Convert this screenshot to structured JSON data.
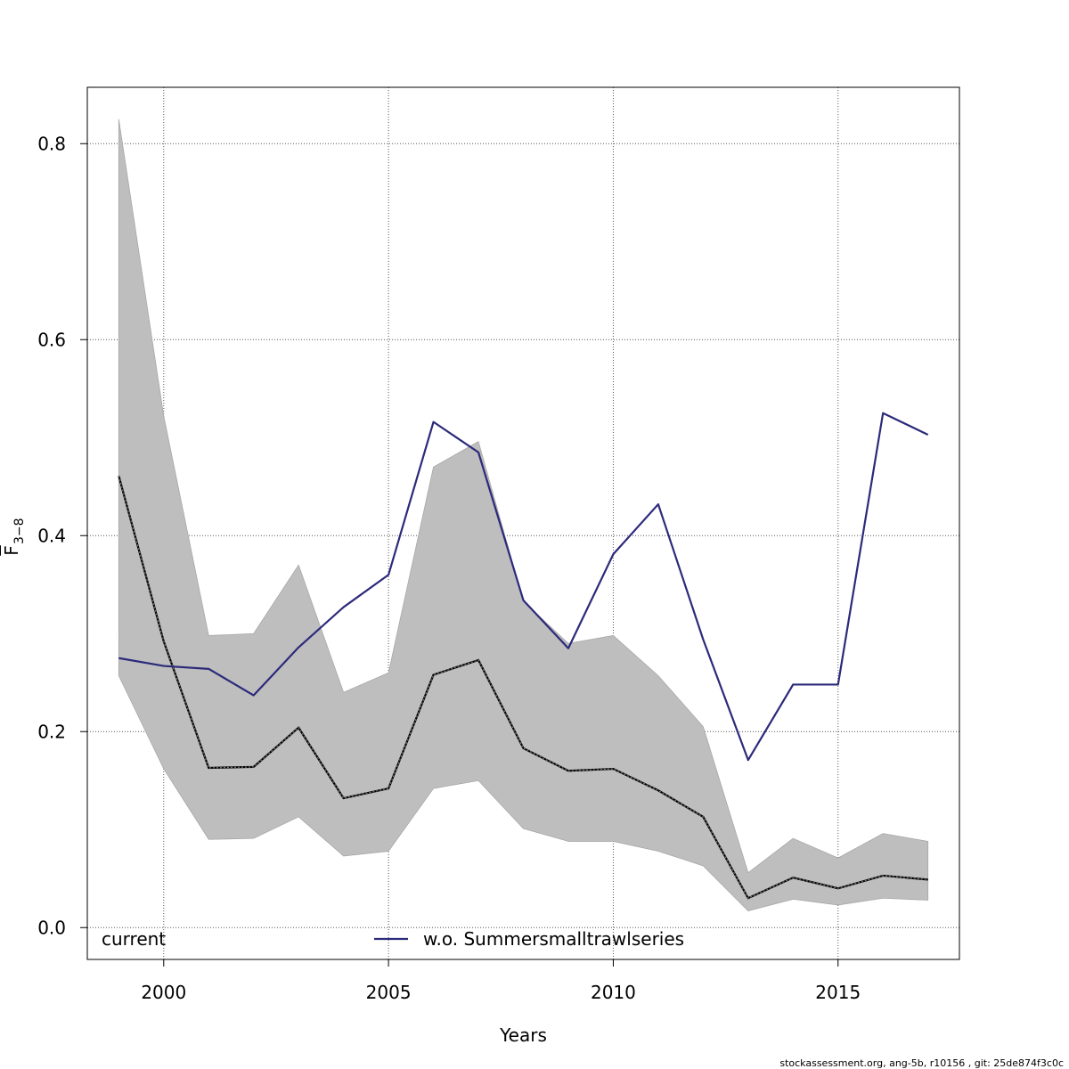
{
  "chart_data": {
    "type": "line",
    "xlabel": "Years",
    "ylabel_main": "F",
    "ylabel_sub": "3−8",
    "xlim": [
      1998.3,
      2017.7
    ],
    "ylim": [
      -0.0325,
      0.8575
    ],
    "xticks": [
      2000,
      2005,
      2010,
      2015
    ],
    "yticks": [
      0.0,
      0.2,
      0.4,
      0.6,
      0.8
    ],
    "ytick_labels": [
      "0.0",
      "0.2",
      "0.4",
      "0.6",
      "0.8"
    ],
    "grid": true,
    "x": [
      1999,
      2000,
      2001,
      2002,
      2003,
      2004,
      2005,
      2006,
      2007,
      2008,
      2009,
      2010,
      2011,
      2012,
      2013,
      2014,
      2015,
      2016,
      2017
    ],
    "band": {
      "name": "current",
      "lower": [
        0.257,
        0.162,
        0.09,
        0.091,
        0.113,
        0.073,
        0.078,
        0.142,
        0.15,
        0.101,
        0.088,
        0.088,
        0.078,
        0.063,
        0.017,
        0.029,
        0.023,
        0.03,
        0.028
      ],
      "upper": [
        0.825,
        0.522,
        0.298,
        0.3,
        0.37,
        0.24,
        0.26,
        0.47,
        0.496,
        0.333,
        0.29,
        0.298,
        0.257,
        0.205,
        0.056,
        0.091,
        0.071,
        0.096,
        0.088
      ],
      "color": "#bebebe"
    },
    "series": [
      {
        "name": "current",
        "values": [
          0.461,
          0.292,
          0.163,
          0.164,
          0.204,
          0.132,
          0.142,
          0.258,
          0.273,
          0.183,
          0.16,
          0.162,
          0.14,
          0.113,
          0.03,
          0.051,
          0.04,
          0.053,
          0.049
        ],
        "color": "#222222",
        "style": "dashed"
      },
      {
        "name": "w.o. Summersmalltrawlseries",
        "values": [
          0.275,
          0.267,
          0.264,
          0.237,
          0.286,
          0.327,
          0.36,
          0.516,
          0.485,
          0.334,
          0.285,
          0.381,
          0.432,
          0.294,
          0.171,
          0.248,
          0.248,
          0.525,
          0.503
        ],
        "color": "#2c2a7a",
        "style": "solid"
      }
    ],
    "legend": {
      "placement": "bottom",
      "entries": [
        "current",
        "w.o. Summersmalltrawlseries"
      ]
    }
  },
  "footer": "stockassessment.org, ang-5b, r10156 , git: 25de874f3c0c"
}
